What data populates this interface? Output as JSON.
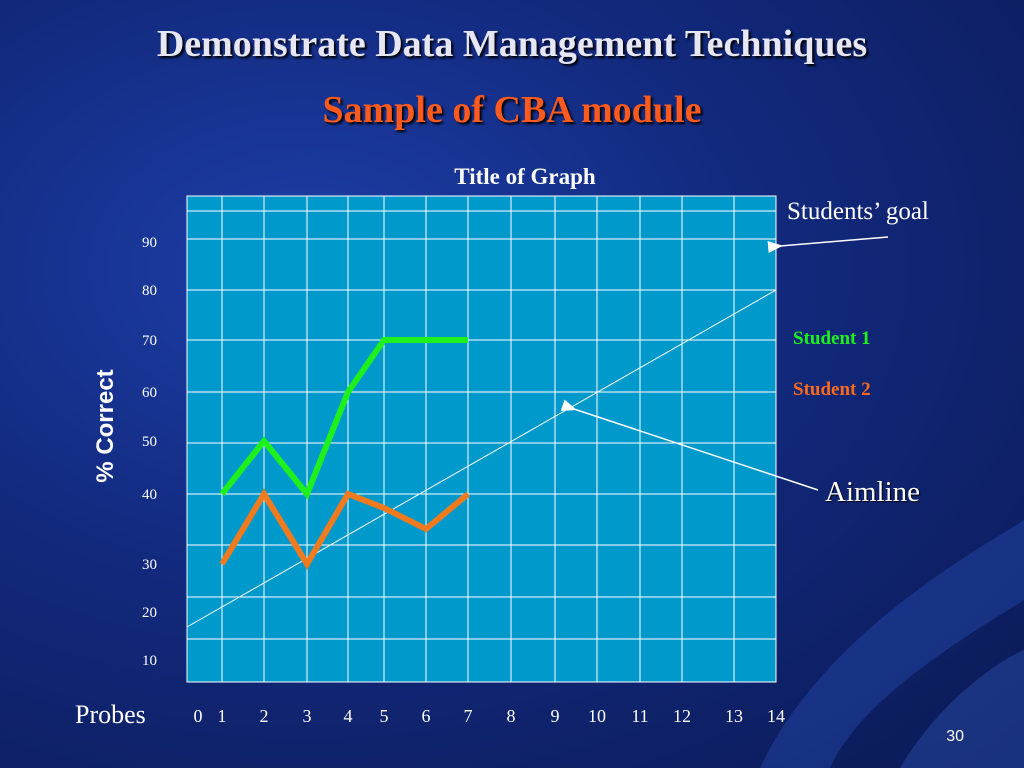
{
  "slide": {
    "title": "Demonstrate Data Management Techniques",
    "subtitle": "Sample of CBA module",
    "page_number": "30"
  },
  "colors": {
    "background": "#12297d",
    "plot_area": "#0099cc",
    "student1": "#1ef01e",
    "student2": "#f07a1e",
    "aimline": "#ffffff"
  },
  "chart_data": {
    "type": "line",
    "title": "Title of Graph",
    "xlabel": "Probes",
    "ylabel": "% Correct",
    "x_ticks": [
      "0",
      "1",
      "2",
      "3",
      "4",
      "5",
      "6",
      "7",
      "8",
      "9",
      "10",
      "11",
      "12",
      "13",
      "14"
    ],
    "y_ticks": [
      "10",
      "20",
      "30",
      "40",
      "50",
      "60",
      "70",
      "80",
      "90"
    ],
    "xlim": [
      0,
      14
    ],
    "grid": true,
    "series": [
      {
        "name": "Student 1",
        "x": [
          1,
          2,
          3,
          4,
          5,
          6,
          7
        ],
        "y": [
          40,
          50,
          40,
          60,
          70,
          70,
          70
        ]
      },
      {
        "name": "Student 2",
        "x": [
          1,
          2,
          3,
          4,
          5,
          6,
          7
        ],
        "y": [
          30,
          40,
          30,
          40,
          38,
          35,
          40
        ]
      }
    ],
    "aimline": {
      "name": "Aimline",
      "x": [
        0,
        14
      ],
      "y": [
        20,
        80
      ]
    },
    "goal": {
      "label": "Students’ goal",
      "y": 90
    },
    "annotations": [
      "Students’ goal",
      "Aimline"
    ]
  }
}
